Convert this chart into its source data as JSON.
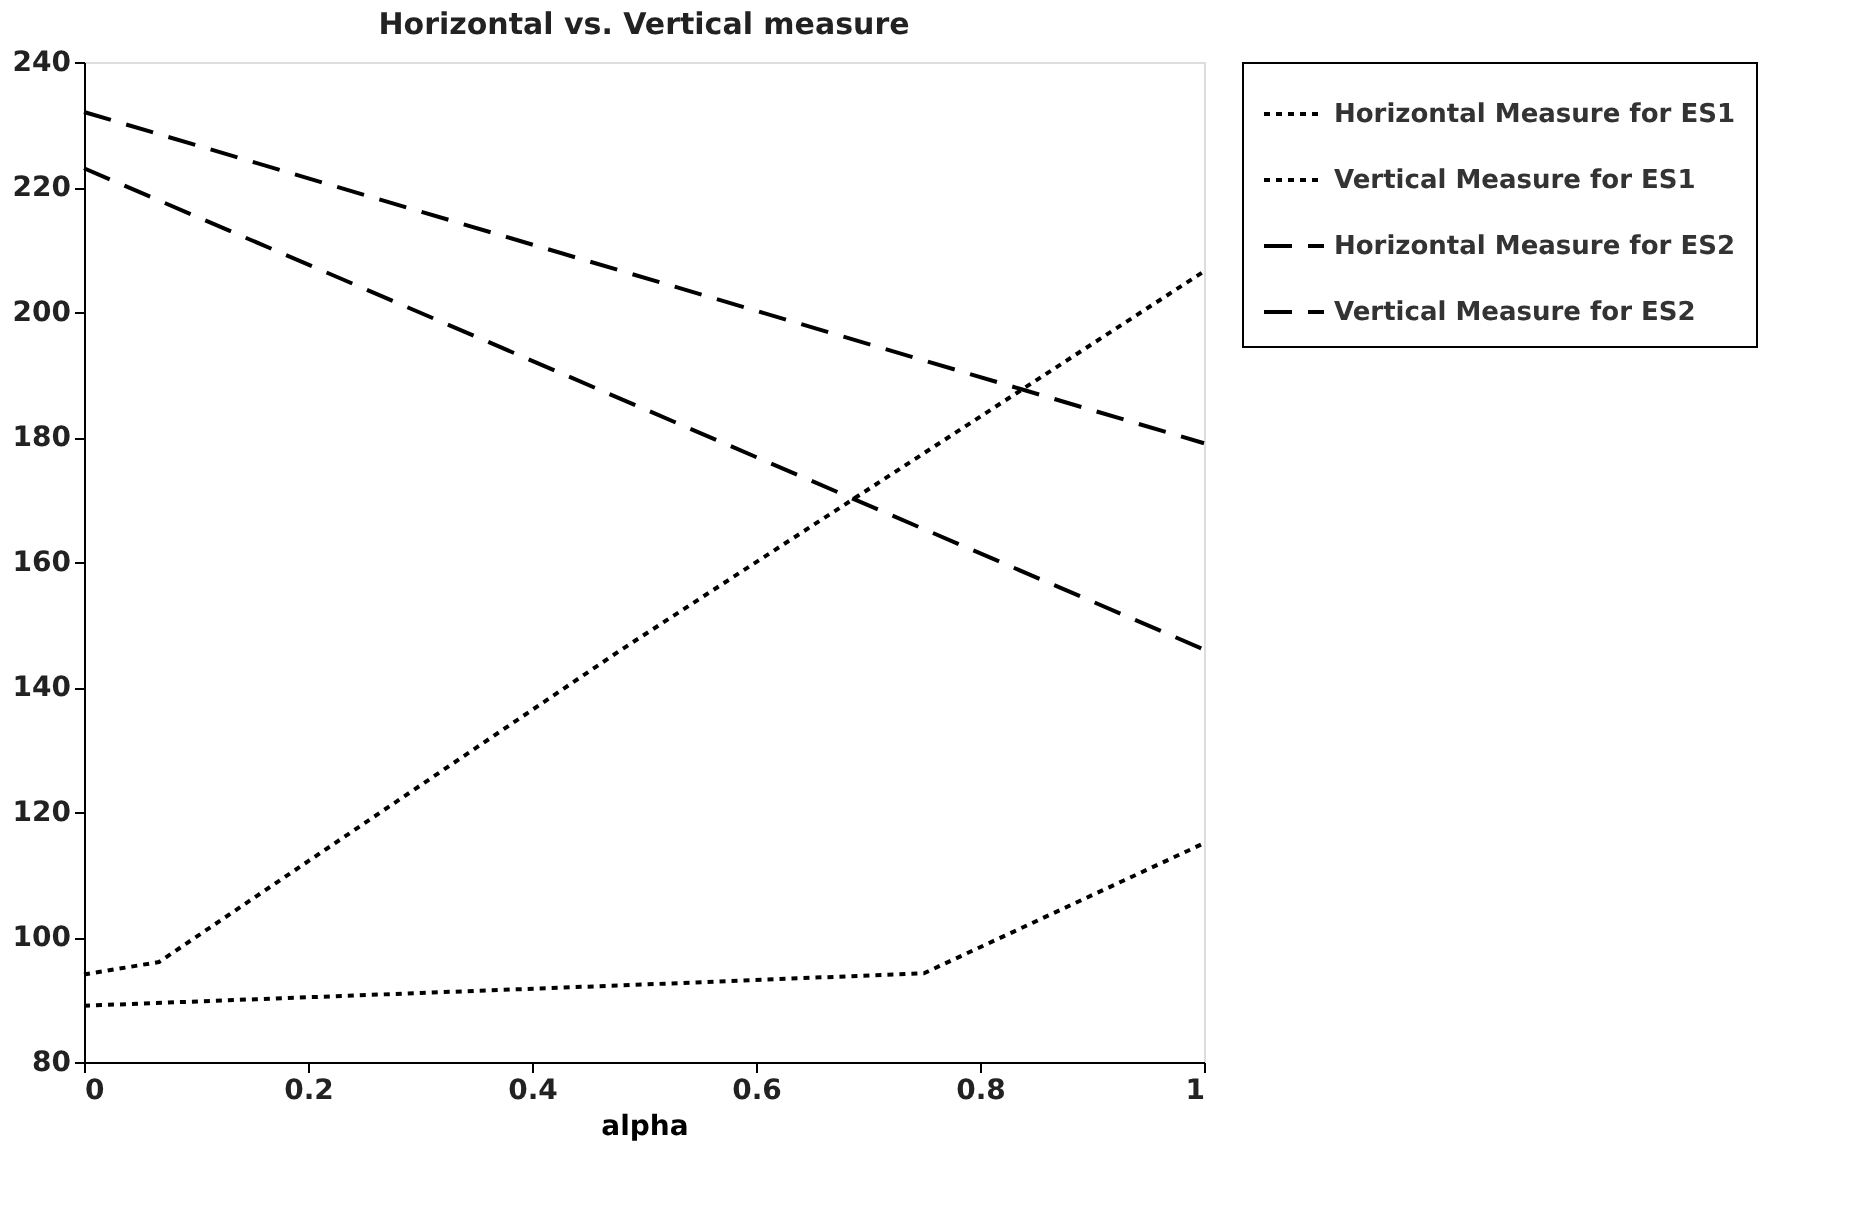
{
  "chart_data": {
    "type": "line",
    "title": "Horizontal vs. Vertical measure",
    "xlabel": "alpha",
    "xlim": [
      0,
      1
    ],
    "xticks": [
      0,
      0.2,
      0.4,
      0.6,
      0.8,
      1
    ],
    "ylim": [
      80,
      240
    ],
    "yticks": [
      80,
      100,
      120,
      140,
      160,
      180,
      200,
      220,
      240
    ],
    "grid": false,
    "legend": "top right",
    "marker": "none",
    "series": [
      {
        "name": "Horizontal Measure for ES1",
        "color": "#000000",
        "line_style": "dotted",
        "x": [
          0,
          0.5,
          0.75,
          1
        ],
        "values": [
          89,
          92.4,
          94.2,
          115
        ]
      },
      {
        "name": "Vertical Measure for ES1",
        "color": "#000000",
        "line_style": "dotted",
        "x": [
          0,
          0.067,
          0.48,
          1
        ],
        "values": [
          94,
          96,
          146,
          206.5
        ]
      },
      {
        "name": "Horizontal Measure for ES2",
        "color": "#000000",
        "line_style": "dashed",
        "x": [
          0,
          1
        ],
        "values": [
          232,
          179
        ]
      },
      {
        "name": "Vertical Measure for ES2",
        "color": "#000000",
        "line_style": "dashed",
        "x": [
          0,
          1
        ],
        "values": [
          223,
          146
        ]
      }
    ]
  }
}
